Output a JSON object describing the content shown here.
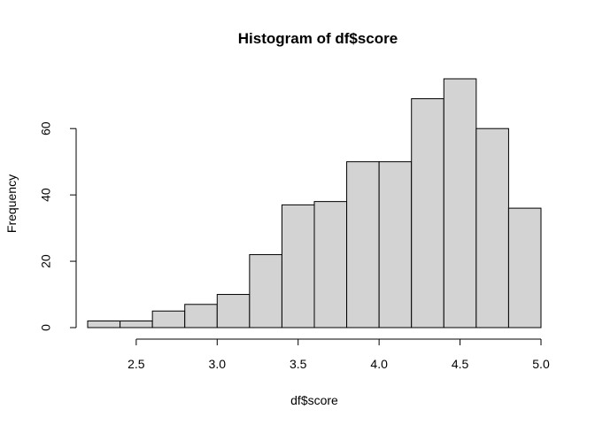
{
  "chart_data": {
    "type": "histogram",
    "title": "Histogram of df$score",
    "xlabel": "df$score",
    "ylabel": "Frequency",
    "bins": [
      {
        "start": 2.2,
        "end": 2.4,
        "count": 2
      },
      {
        "start": 2.4,
        "end": 2.6,
        "count": 2
      },
      {
        "start": 2.6,
        "end": 2.8,
        "count": 5
      },
      {
        "start": 2.8,
        "end": 3.0,
        "count": 7
      },
      {
        "start": 3.0,
        "end": 3.2,
        "count": 10
      },
      {
        "start": 3.2,
        "end": 3.4,
        "count": 22
      },
      {
        "start": 3.4,
        "end": 3.6,
        "count": 37
      },
      {
        "start": 3.6,
        "end": 3.8,
        "count": 38
      },
      {
        "start": 3.8,
        "end": 4.0,
        "count": 50
      },
      {
        "start": 4.0,
        "end": 4.2,
        "count": 50
      },
      {
        "start": 4.2,
        "end": 4.4,
        "count": 69
      },
      {
        "start": 4.4,
        "end": 4.6,
        "count": 75
      },
      {
        "start": 4.6,
        "end": 4.8,
        "count": 60
      },
      {
        "start": 4.8,
        "end": 5.0,
        "count": 36
      }
    ],
    "xlim": [
      2.2,
      5.0
    ],
    "ylim": [
      0,
      75
    ],
    "xticks": [
      2.5,
      3.0,
      3.5,
      4.0,
      4.5,
      5.0
    ],
    "xtick_labels": [
      "2.5",
      "3.0",
      "3.5",
      "4.0",
      "4.5",
      "5.0"
    ],
    "yticks": [
      0,
      20,
      40,
      60
    ],
    "ytick_labels": [
      "0",
      "20",
      "40",
      "60"
    ],
    "bar_fill": "#d3d3d3",
    "bar_stroke": "#000000",
    "grid": false,
    "legend": "none"
  }
}
